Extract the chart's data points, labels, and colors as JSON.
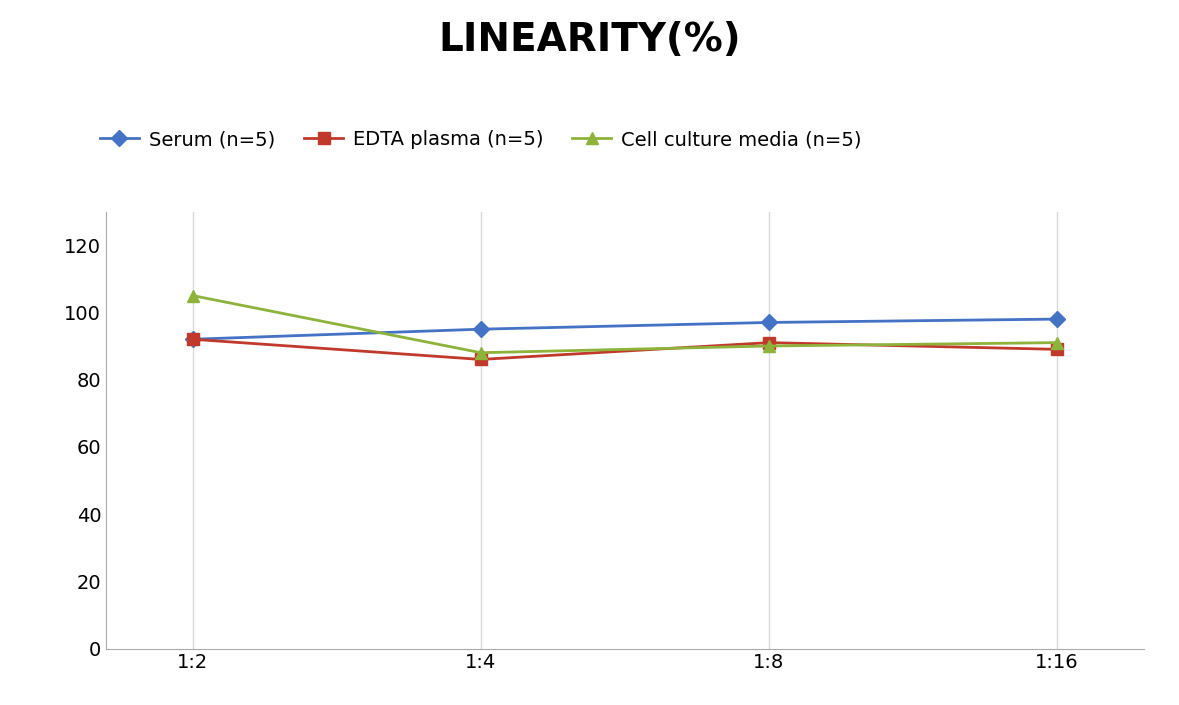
{
  "title": "LINEARITY(%)",
  "x_labels": [
    "1:2",
    "1:4",
    "1:8",
    "1:16"
  ],
  "series": [
    {
      "name": "Serum (n=5)",
      "values": [
        92,
        95,
        97,
        98
      ],
      "color": "#4472C4",
      "marker": "D",
      "marker_size": 8
    },
    {
      "name": "EDTA plasma (n=5)",
      "values": [
        92,
        86,
        91,
        89
      ],
      "color": "#C0392B",
      "marker": "s",
      "marker_size": 8
    },
    {
      "name": "Cell culture media (n=5)",
      "values": [
        105,
        88,
        90,
        91
      ],
      "color": "#8DB33A",
      "marker": "^",
      "marker_size": 9
    }
  ],
  "ylim": [
    0,
    130
  ],
  "yticks": [
    0,
    20,
    40,
    60,
    80,
    100,
    120
  ],
  "background_color": "#ffffff",
  "grid_color": "#D9D9D9",
  "title_fontsize": 28,
  "legend_fontsize": 14,
  "tick_fontsize": 14,
  "linewidth": 2.0
}
